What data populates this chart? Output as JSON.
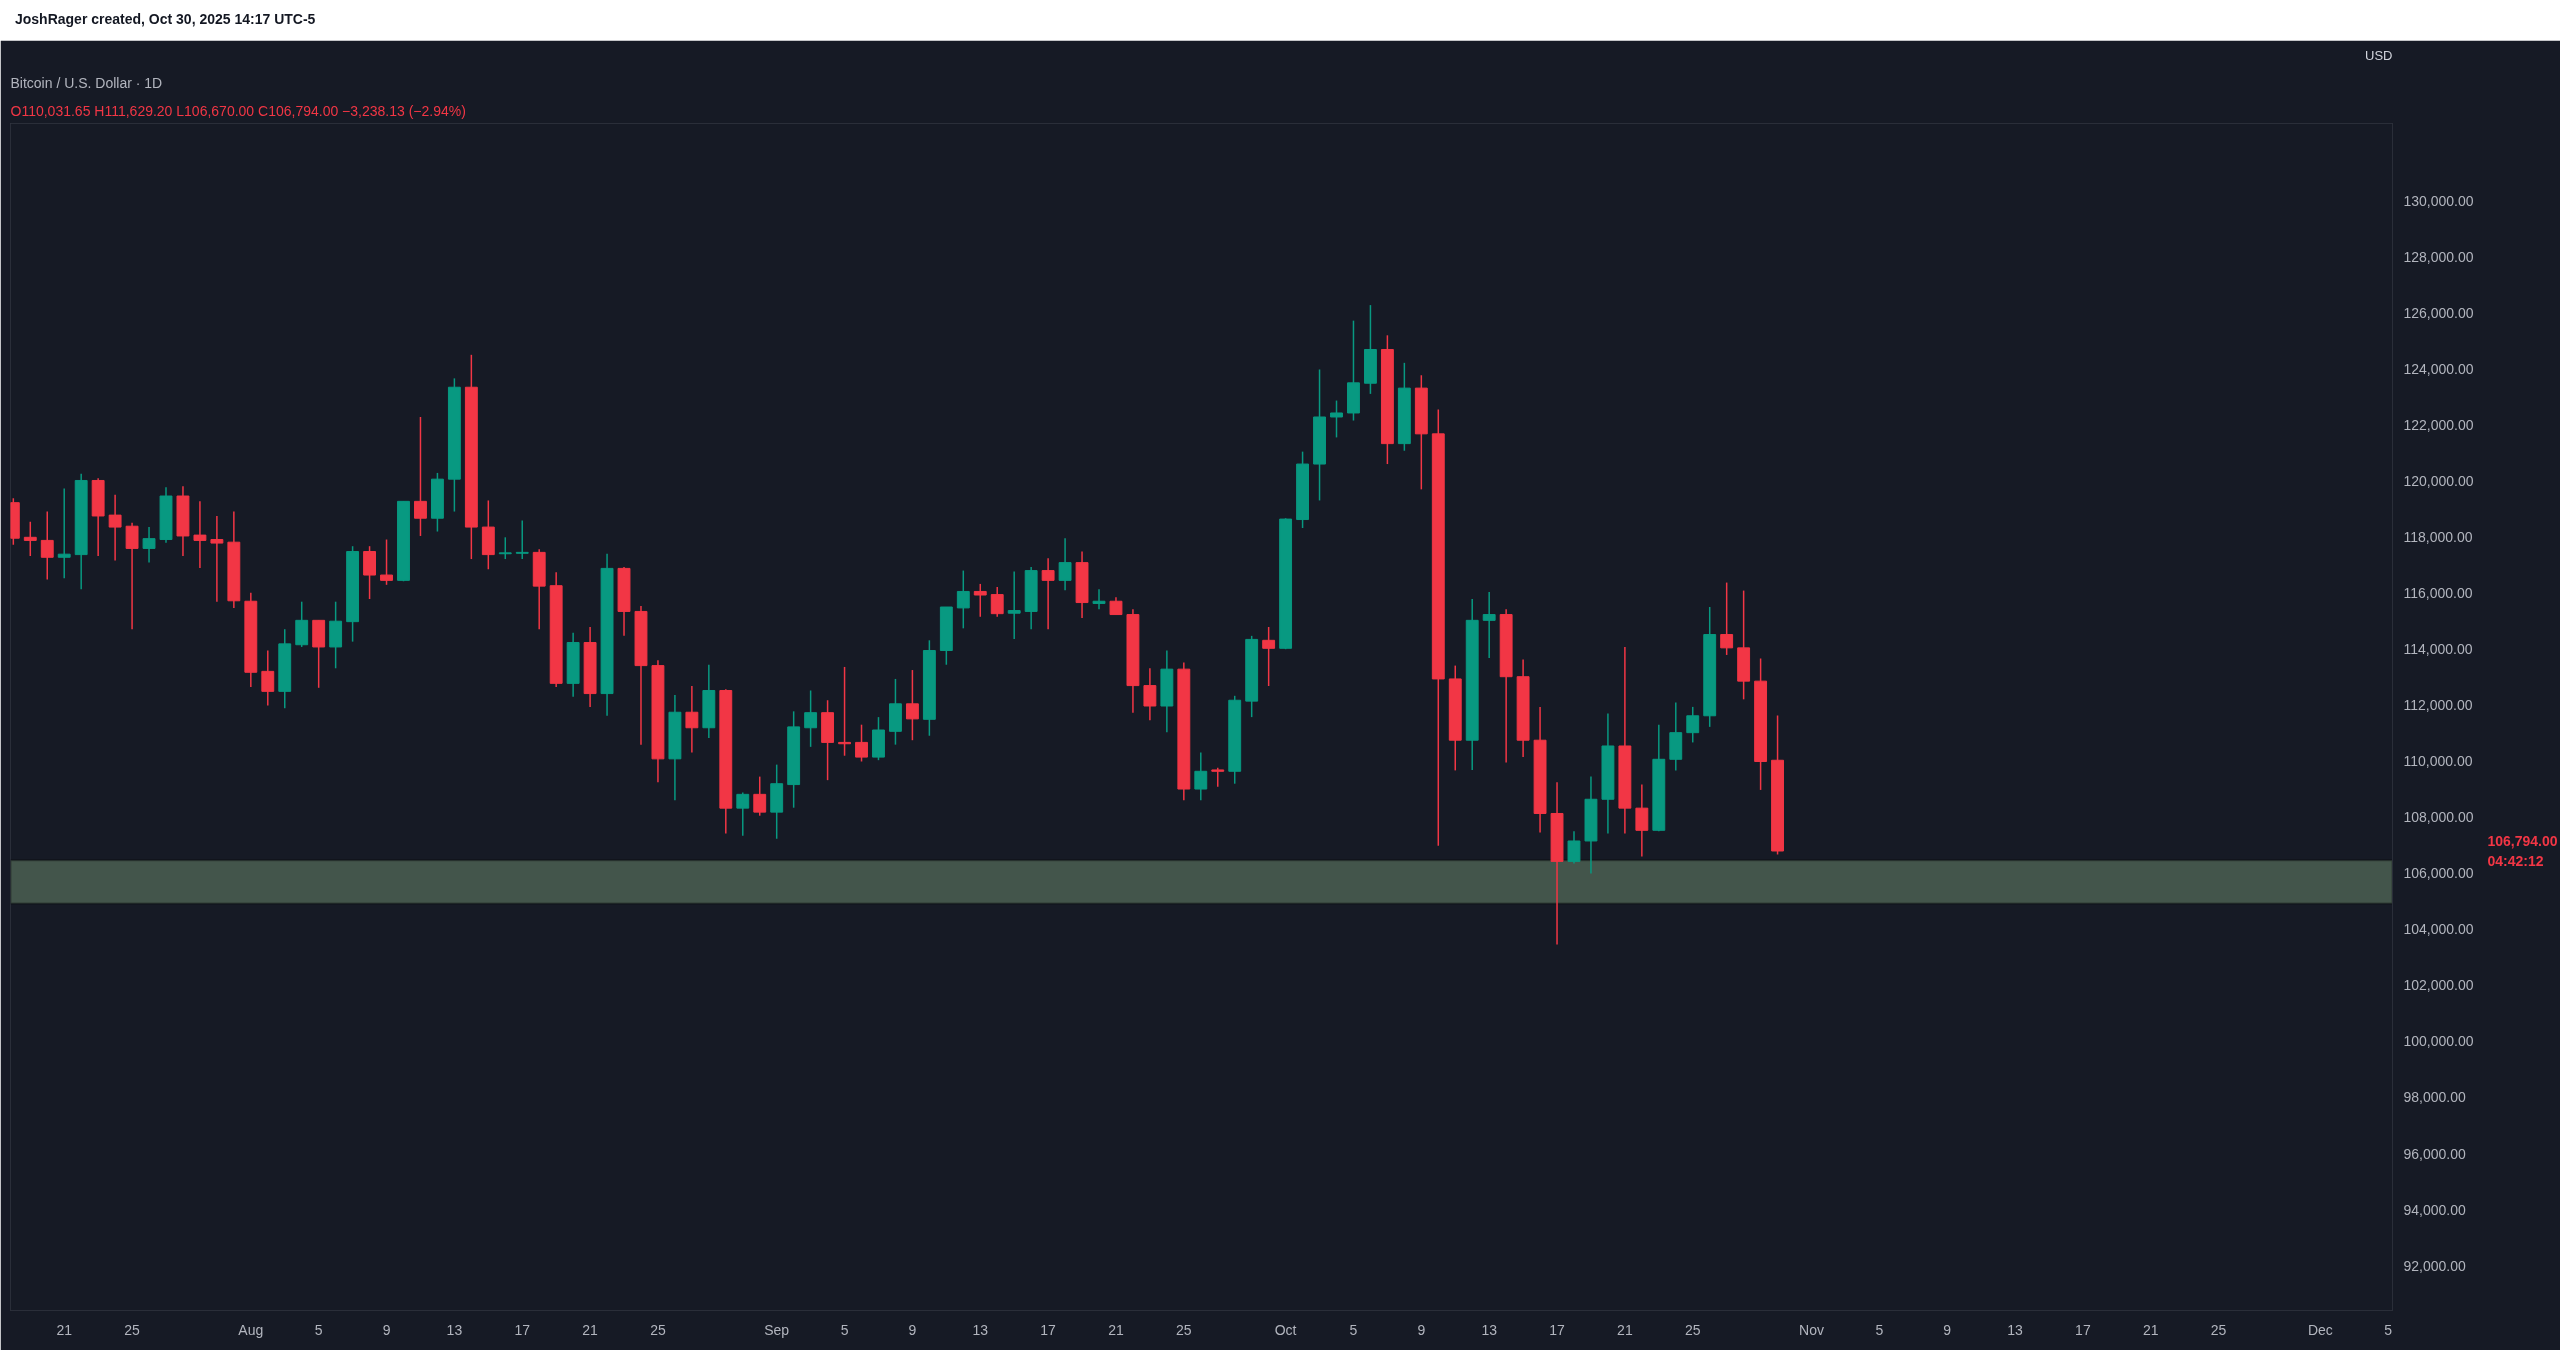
{
  "chart_data": {
    "type": "candlestick",
    "title": "Bitcoin / U.S. Dollar · 1D",
    "subtitle": "O110,031.65  H111,629.20  L106,670.00  C106,794.00  −3,238.13 (−2.94%)",
    "annotations": [
      "JoshRager created, Oct 30, 2025 14:17 UTC-5",
      "USD",
      "106,794.00",
      "04:42:12"
    ],
    "x": [
      "2025-07-18",
      "2025-07-19",
      "2025-07-20",
      "2025-07-21",
      "2025-07-22",
      "2025-07-23",
      "2025-07-24",
      "2025-07-25",
      "2025-07-26",
      "2025-07-27",
      "2025-07-28",
      "2025-07-29",
      "2025-07-30",
      "2025-07-31",
      "2025-08-01",
      "2025-08-02",
      "2025-08-03",
      "2025-08-04",
      "2025-08-05",
      "2025-08-06",
      "2025-08-07",
      "2025-08-08",
      "2025-08-09",
      "2025-08-10",
      "2025-08-11",
      "2025-08-12",
      "2025-08-13",
      "2025-08-14",
      "2025-08-15",
      "2025-08-16",
      "2025-08-17",
      "2025-08-18",
      "2025-08-19",
      "2025-08-20",
      "2025-08-21",
      "2025-08-22",
      "2025-08-23",
      "2025-08-24",
      "2025-08-25",
      "2025-08-26",
      "2025-08-27",
      "2025-08-28",
      "2025-08-29",
      "2025-08-30",
      "2025-08-31",
      "2025-09-01",
      "2025-09-02",
      "2025-09-03",
      "2025-09-04",
      "2025-09-05",
      "2025-09-06",
      "2025-09-07",
      "2025-09-08",
      "2025-09-09",
      "2025-09-10",
      "2025-09-11",
      "2025-09-12",
      "2025-09-13",
      "2025-09-14",
      "2025-09-15",
      "2025-09-16",
      "2025-09-17",
      "2025-09-18",
      "2025-09-19",
      "2025-09-20",
      "2025-09-21",
      "2025-09-22",
      "2025-09-23",
      "2025-09-24",
      "2025-09-25",
      "2025-09-26",
      "2025-09-27",
      "2025-09-28",
      "2025-09-29",
      "2025-09-30",
      "2025-10-01",
      "2025-10-02",
      "2025-10-03",
      "2025-10-04",
      "2025-10-05",
      "2025-10-06",
      "2025-10-07",
      "2025-10-08",
      "2025-10-09",
      "2025-10-10",
      "2025-10-11",
      "2025-10-12",
      "2025-10-13",
      "2025-10-14",
      "2025-10-15",
      "2025-10-16",
      "2025-10-17",
      "2025-10-18",
      "2025-10-19",
      "2025-10-20",
      "2025-10-21",
      "2025-10-22",
      "2025-10-23",
      "2025-10-24",
      "2025-10-25",
      "2025-10-26",
      "2025-10-27",
      "2025-10-28",
      "2025-10-29",
      "2025-10-30"
    ],
    "ohlc": [
      [
        119222,
        119380,
        117717,
        117954
      ],
      [
        117986,
        118541,
        117321,
        117875
      ],
      [
        117875,
        118905,
        116482,
        117273
      ],
      [
        117273,
        119729,
        116529,
        117384
      ],
      [
        117369,
        120251,
        116133,
        120014
      ],
      [
        120014,
        120093,
        117321,
        118747
      ],
      [
        118778,
        119507,
        117163,
        118351
      ],
      [
        118382,
        118509,
        114707,
        117590
      ],
      [
        117590,
        118351,
        117084,
        117939
      ],
      [
        117907,
        119776,
        117796,
        119459
      ],
      [
        119459,
        119808,
        117321,
        118034
      ],
      [
        118065,
        119269,
        116893,
        117875
      ],
      [
        117907,
        118747,
        115689,
        117780
      ],
      [
        117812,
        118905,
        115468,
        115721
      ],
      [
        115705,
        116006,
        112648,
        113171
      ],
      [
        113203,
        113947,
        111983,
        112490
      ],
      [
        112490,
        114707,
        111888,
        114185
      ],
      [
        114153,
        115689,
        114074,
        115024
      ],
      [
        115024,
        115024,
        112617,
        114074
      ],
      [
        114074,
        115689,
        113313,
        114993
      ],
      [
        114977,
        117669,
        114264,
        117479
      ],
      [
        117479,
        117669,
        115784,
        116640
      ],
      [
        116640,
        117907,
        116291,
        116450
      ],
      [
        116450,
        119269,
        116418,
        119269
      ],
      [
        119269,
        122279,
        118034,
        118667
      ],
      [
        118667,
        120283,
        118192,
        120061
      ],
      [
        120061,
        123657,
        118905,
        123340
      ],
      [
        123340,
        124497,
        117210,
        118351
      ],
      [
        118351,
        119301,
        116846,
        117369
      ],
      [
        117400,
        117986,
        117210,
        117432
      ],
      [
        117416,
        118588,
        117210,
        117448
      ],
      [
        117448,
        117559,
        114707,
        116244
      ],
      [
        116260,
        116735,
        112648,
        112775
      ],
      [
        112775,
        114581,
        112300,
        114232
      ],
      [
        114232,
        114787,
        111935,
        112411
      ],
      [
        112411,
        117400,
        111618,
        116877
      ],
      [
        116877,
        116925,
        114470,
        115341
      ],
      [
        115341,
        115531,
        110589,
        113409
      ],
      [
        113409,
        113599,
        109243,
        110082
      ],
      [
        110082,
        112363,
        108609,
        111745
      ],
      [
        111745,
        112680,
        110304,
        111191
      ],
      [
        111191,
        113440,
        110827,
        112521
      ],
      [
        112521,
        112569,
        107421,
        108323
      ],
      [
        108323,
        108878,
        107341,
        108815
      ],
      [
        108815,
        109448,
        108054,
        108181
      ],
      [
        108181,
        109876,
        107231,
        109195
      ],
      [
        109164,
        111777,
        108339,
        111222
      ],
      [
        111191,
        112521,
        110510,
        111729
      ],
      [
        111729,
        112173,
        109322,
        110668
      ],
      [
        110668,
        113361,
        110193,
        110621
      ],
      [
        110668,
        111301,
        109987,
        110145
      ],
      [
        110145,
        111571,
        110035,
        111111
      ],
      [
        111064,
        112933,
        110589,
        112046
      ],
      [
        112046,
        113250,
        110747,
        111508
      ],
      [
        111492,
        114311,
        110906,
        113947
      ],
      [
        113947,
        115499,
        113440,
        115499
      ],
      [
        115467,
        116799,
        114739,
        116054
      ],
      [
        116054,
        116323,
        115151,
        115927
      ],
      [
        115943,
        116212,
        115151,
        115262
      ],
      [
        115278,
        116767,
        114359,
        115373
      ],
      [
        115341,
        116925,
        114707,
        116799
      ],
      [
        116799,
        117242,
        114707,
        116450
      ],
      [
        116450,
        117955,
        116101,
        117083
      ],
      [
        117083,
        117479,
        115103,
        115658
      ],
      [
        115626,
        116133,
        115420,
        115705
      ],
      [
        115705,
        115848,
        115230,
        115230
      ],
      [
        115230,
        115420,
        111729,
        112696
      ],
      [
        112696,
        113313,
        111460,
        111967
      ],
      [
        111967,
        113947,
        111032,
        113282
      ],
      [
        113282,
        113519,
        108609,
        109005
      ],
      [
        109005,
        110304,
        108609,
        109638
      ],
      [
        109686,
        109765,
        109084,
        109638
      ],
      [
        109638,
        112331,
        109195,
        112173
      ],
      [
        112141,
        114470,
        111571,
        114343
      ],
      [
        114311,
        114787,
        112680,
        114026
      ],
      [
        114026,
        118667,
        113994,
        118636
      ],
      [
        118620,
        121043,
        118319,
        120600
      ],
      [
        120600,
        123974,
        119301,
        122279
      ],
      [
        122279,
        122865,
        121550,
        122422
      ],
      [
        122422,
        125716,
        122152,
        123498
      ],
      [
        123483,
        126271,
        123103,
        124687
      ],
      [
        124687,
        125193,
        120600,
        121329
      ],
      [
        121329,
        124211,
        121075,
        123309
      ],
      [
        123309,
        123768,
        119697,
        121677
      ],
      [
        121677,
        122548,
        106978,
        112933
      ],
      [
        112933,
        113409,
        109670,
        110747
      ],
      [
        110747,
        115785,
        109686,
        115024
      ],
      [
        115024,
        116037,
        113678,
        115230
      ],
      [
        115230,
        115420,
        109955,
        113013
      ],
      [
        113013,
        113630,
        110145,
        110747
      ],
      [
        110747,
        111936,
        107452,
        108133
      ],
      [
        108133,
        109243,
        103461,
        106423
      ],
      [
        106423,
        107500,
        106344,
        107152
      ],
      [
        107152,
        109448,
        105995,
        108640
      ],
      [
        108640,
        111697,
        107421,
        110541
      ],
      [
        110541,
        114074,
        107421,
        108323
      ],
      [
        108323,
        109163,
        106597,
        107532
      ],
      [
        107532,
        111302,
        107500,
        110066
      ],
      [
        110066,
        112094,
        109670,
        111016
      ],
      [
        111016,
        111935,
        110668,
        111619
      ],
      [
        111619,
        115499,
        111223,
        114517
      ],
      [
        114517,
        116371,
        113789,
        114042
      ],
      [
        114042,
        116085,
        112205,
        112854
      ],
      [
        112854,
        113662,
        108973,
        109987
      ],
      [
        110031.65,
        111629.2,
        106670,
        106794
      ]
    ],
    "colors": [
      "#f23645",
      "#f23645",
      "#f23645",
      "#089981",
      "#089981",
      "#f23645",
      "#f23645",
      "#f23645",
      "#089981",
      "#089981",
      "#f23645",
      "#f23645",
      "#f23645",
      "#f23645",
      "#f23645",
      "#f23645",
      "#089981",
      "#089981",
      "#f23645",
      "#089981",
      "#089981",
      "#f23645",
      "#f23645",
      "#089981",
      "#f23645",
      "#089981",
      "#089981",
      "#f23645",
      "#f23645",
      "#089981",
      "#089981",
      "#f23645",
      "#f23645",
      "#089981",
      "#f23645",
      "#089981",
      "#f23645",
      "#f23645",
      "#f23645",
      "#089981",
      "#f23645",
      "#089981",
      "#f23645",
      "#089981",
      "#f23645",
      "#089981",
      "#089981",
      "#089981",
      "#f23645",
      "#f23645",
      "#f23645",
      "#089981",
      "#089981",
      "#f23645",
      "#089981",
      "#089981",
      "#089981",
      "#f23645",
      "#f23645",
      "#089981",
      "#089981",
      "#f23645",
      "#089981",
      "#f23645",
      "#089981",
      "#f23645",
      "#f23645",
      "#f23645",
      "#089981",
      "#f23645",
      "#089981",
      "#f23645",
      "#089981",
      "#089981",
      "#f23645",
      "#089981",
      "#089981",
      "#089981",
      "#089981",
      "#089981",
      "#089981",
      "#f23645",
      "#089981",
      "#f23645",
      "#f23645",
      "#f23645",
      "#089981",
      "#089981",
      "#f23645",
      "#f23645",
      "#f23645",
      "#f23645",
      "#089981",
      "#089981",
      "#089981",
      "#f23645",
      "#f23645",
      "#089981",
      "#089981",
      "#089981",
      "#089981",
      "#f23645",
      "#f23645",
      "#f23645",
      "#f23645"
    ],
    "bands": [
      {
        "axis": "y",
        "from": 104917,
        "to": 106460,
        "color": "#43554b"
      }
    ],
    "xlim": [
      "2025-07-17T20:00",
      "2025-12-05T06:00"
    ],
    "xticks": [
      {
        "value": "2025-07-21",
        "label": "21"
      },
      {
        "value": "2025-07-25",
        "label": "25"
      },
      {
        "value": "2025-08-01",
        "label": "Aug"
      },
      {
        "value": "2025-08-05",
        "label": "5"
      },
      {
        "value": "2025-08-09",
        "label": "9"
      },
      {
        "value": "2025-08-13",
        "label": "13"
      },
      {
        "value": "2025-08-17",
        "label": "17"
      },
      {
        "value": "2025-08-21",
        "label": "21"
      },
      {
        "value": "2025-08-25",
        "label": "25"
      },
      {
        "value": "2025-09-01",
        "label": "Sep"
      },
      {
        "value": "2025-09-05",
        "label": "5"
      },
      {
        "value": "2025-09-09",
        "label": "9"
      },
      {
        "value": "2025-09-13",
        "label": "13"
      },
      {
        "value": "2025-09-17",
        "label": "17"
      },
      {
        "value": "2025-09-21",
        "label": "21"
      },
      {
        "value": "2025-09-25",
        "label": "25"
      },
      {
        "value": "2025-10-01",
        "label": "Oct"
      },
      {
        "value": "2025-10-05",
        "label": "5"
      },
      {
        "value": "2025-10-09",
        "label": "9"
      },
      {
        "value": "2025-10-13",
        "label": "13"
      },
      {
        "value": "2025-10-17",
        "label": "17"
      },
      {
        "value": "2025-10-21",
        "label": "21"
      },
      {
        "value": "2025-10-25",
        "label": "25"
      },
      {
        "value": "2025-11-01",
        "label": "Nov"
      },
      {
        "value": "2025-11-05",
        "label": "5"
      },
      {
        "value": "2025-11-09",
        "label": "9"
      },
      {
        "value": "2025-11-13",
        "label": "13"
      },
      {
        "value": "2025-11-17",
        "label": "17"
      },
      {
        "value": "2025-11-21",
        "label": "21"
      },
      {
        "value": "2025-11-25",
        "label": "25"
      },
      {
        "value": "2025-12-01",
        "label": "Dec"
      },
      {
        "value": "2025-12-05",
        "label": "5"
      }
    ],
    "ylim": [
      90400,
      132750
    ],
    "yticks": [
      {
        "value": 92000,
        "label": "92,000.00"
      },
      {
        "value": 94000,
        "label": "94,000.00"
      },
      {
        "value": 96000,
        "label": "96,000.00"
      },
      {
        "value": 98000,
        "label": "98,000.00"
      },
      {
        "value": 100000,
        "label": "100,000.00"
      },
      {
        "value": 102000,
        "label": "102,000.00"
      },
      {
        "value": 104000,
        "label": "104,000.00"
      },
      {
        "value": 106000,
        "label": "106,000.00"
      },
      {
        "value": 108000,
        "label": "108,000.00"
      },
      {
        "value": 110000,
        "label": "110,000.00"
      },
      {
        "value": 112000,
        "label": "112,000.00"
      },
      {
        "value": 114000,
        "label": "114,000.00"
      },
      {
        "value": 116000,
        "label": "116,000.00"
      },
      {
        "value": 118000,
        "label": "118,000.00"
      },
      {
        "value": 120000,
        "label": "120,000.00"
      },
      {
        "value": 122000,
        "label": "122,000.00"
      },
      {
        "value": 124000,
        "label": "124,000.00"
      },
      {
        "value": 126000,
        "label": "126,000.00"
      },
      {
        "value": 128000,
        "label": "128,000.00"
      },
      {
        "value": 130000,
        "label": "130,000.00"
      }
    ],
    "grid": false
  }
}
